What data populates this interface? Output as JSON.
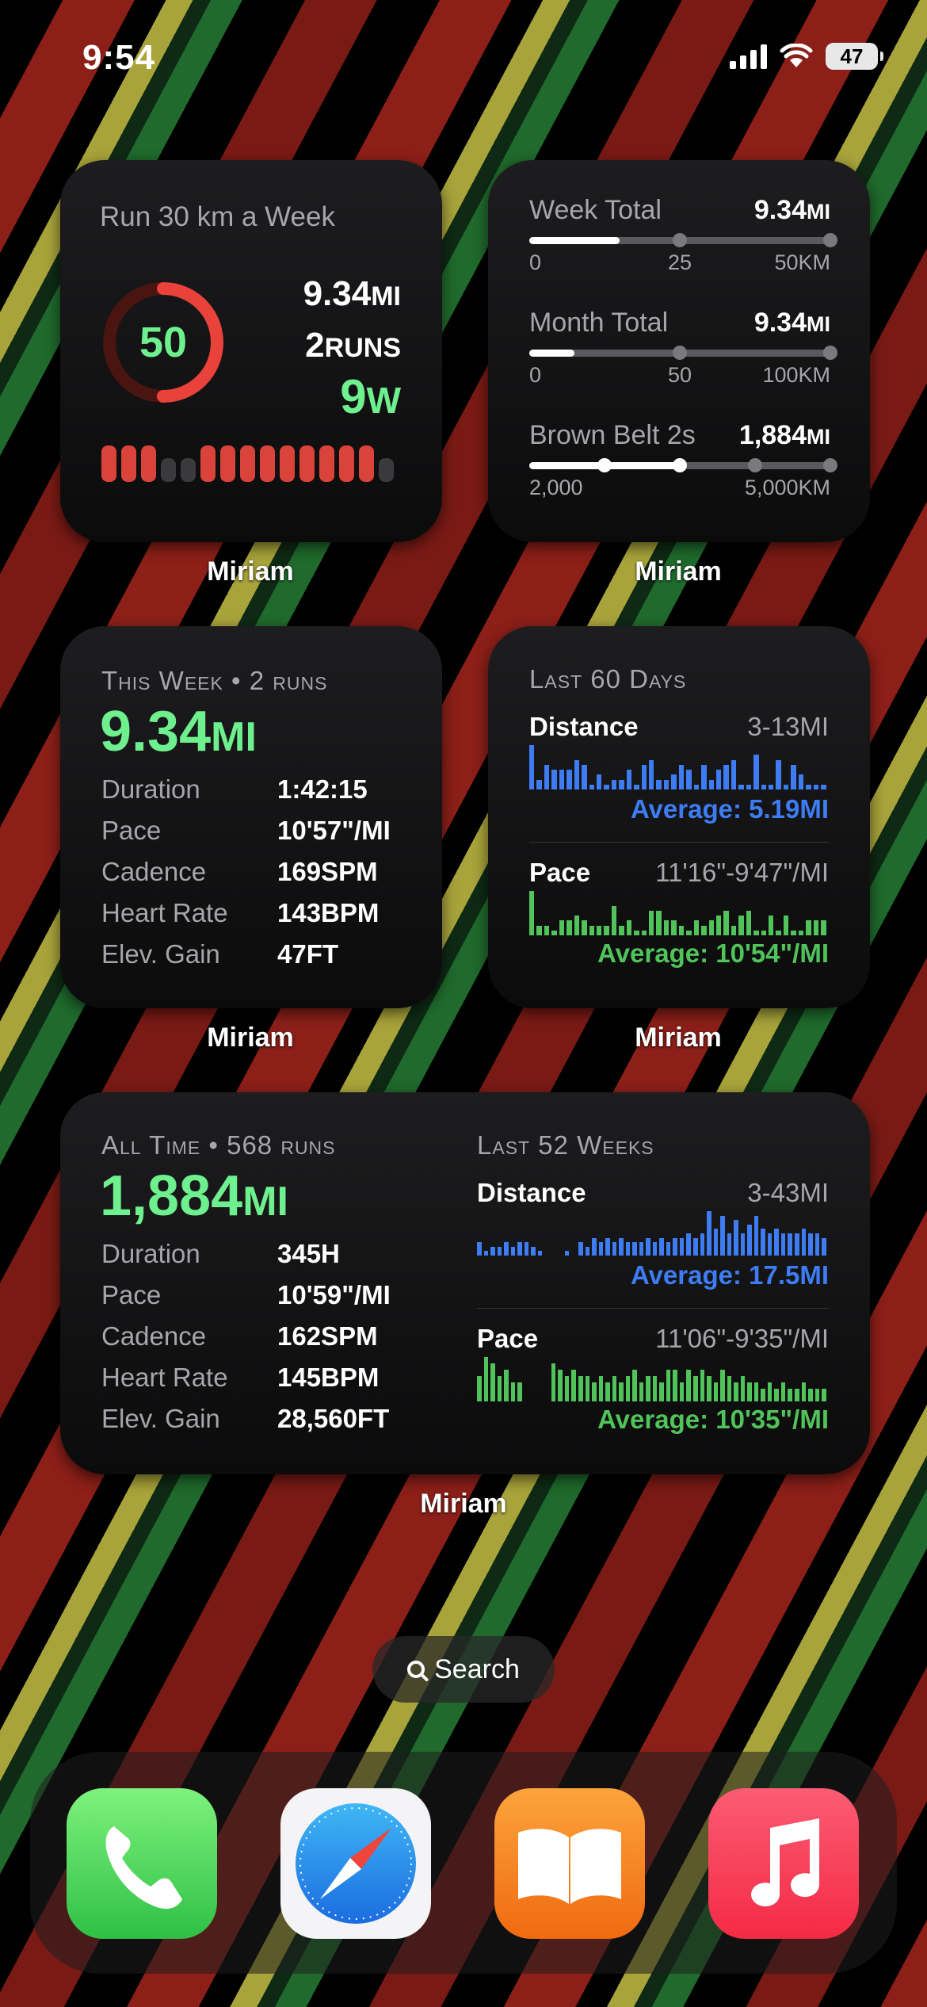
{
  "status_bar": {
    "time": "9:54",
    "battery": "47"
  },
  "widgets": {
    "goal": {
      "title": "Run 30 km a Week",
      "ring_value": "50",
      "ring_progress": 0.5,
      "distance": "9.34",
      "distance_unit": "MI",
      "runs": "2",
      "runs_unit": "RUNS",
      "weeks": "9",
      "weeks_unit": "W",
      "streak_bars": [
        1,
        1,
        1,
        0,
        0,
        1,
        1,
        1,
        1,
        1,
        1,
        1,
        1,
        1,
        0
      ],
      "label": "Miriam"
    },
    "totals": {
      "week": {
        "name": "Week Total",
        "value": "9.34",
        "unit": "MI",
        "ticks": [
          "0",
          "25",
          "50KM"
        ],
        "progress": 0.3,
        "dots": [
          0.5,
          1.0
        ]
      },
      "month": {
        "name": "Month Total",
        "value": "9.34",
        "unit": "MI",
        "ticks": [
          "0",
          "50",
          "100KM"
        ],
        "progress": 0.15,
        "dots": [
          0.5,
          1.0
        ]
      },
      "belt": {
        "name": "Brown Belt 2s",
        "value": "1,884",
        "unit": "MI",
        "ticks": [
          "2,000",
          "5,000KM"
        ],
        "progress": 0.5,
        "dots": [
          0.25,
          0.5,
          0.75,
          1.0
        ]
      },
      "label": "Miriam"
    },
    "this_week": {
      "heading": "This Week • 2 runs",
      "distance": "9.34",
      "distance_unit": "MI",
      "stats": [
        {
          "k": "Duration",
          "v": "1:42:15"
        },
        {
          "k": "Pace",
          "v": "10'57\"/MI"
        },
        {
          "k": "Cadence",
          "v": "169SPM"
        },
        {
          "k": "Heart Rate",
          "v": "143BPM"
        },
        {
          "k": "Elev. Gain",
          "v": "47FT"
        }
      ],
      "label": "Miriam"
    },
    "last60": {
      "heading": "Last 60 Days",
      "distance": {
        "name": "Distance",
        "range": "3-13MI",
        "average": "Average: 5.19MI",
        "bars": [
          9,
          2,
          5,
          4,
          4,
          4,
          6,
          5,
          1,
          3,
          1,
          2,
          2,
          4,
          1,
          5,
          6,
          2,
          2,
          3,
          5,
          4,
          1,
          5,
          2,
          4,
          5,
          6,
          1,
          1,
          7,
          1,
          1,
          6,
          1,
          5,
          3,
          1,
          1,
          1
        ]
      },
      "pace": {
        "name": "Pace",
        "range": "11'16\"-9'47\"/MI",
        "average": "Average: 10'54\"/MI",
        "bars": [
          9,
          2,
          2,
          1,
          3,
          3,
          4,
          3,
          2,
          2,
          2,
          6,
          2,
          3,
          1,
          1,
          5,
          5,
          3,
          3,
          2,
          1,
          3,
          2,
          3,
          4,
          5,
          2,
          4,
          5,
          1,
          1,
          4,
          1,
          4,
          1,
          1,
          3,
          3,
          3
        ]
      },
      "label": "Miriam"
    },
    "all_time": {
      "heading": "All Time • 568 runs",
      "distance": "1,884",
      "distance_unit": "MI",
      "stats": [
        {
          "k": "Duration",
          "v": "345H"
        },
        {
          "k": "Pace",
          "v": "10'59\"/MI"
        },
        {
          "k": "Cadence",
          "v": "162SPM"
        },
        {
          "k": "Heart Rate",
          "v": "145BPM"
        },
        {
          "k": "Elev. Gain",
          "v": "28,560FT"
        }
      ],
      "weeks_heading": "Last 52 Weeks",
      "distance52": {
        "name": "Distance",
        "range": "3-43MI",
        "average": "Average: 17.5MI",
        "bars": [
          3,
          1,
          2,
          2,
          3,
          2,
          3,
          3,
          2,
          1,
          0,
          0,
          0,
          1,
          0,
          3,
          2,
          4,
          3,
          4,
          3,
          4,
          3,
          3,
          3,
          4,
          3,
          4,
          3,
          4,
          4,
          5,
          4,
          5,
          10,
          6,
          9,
          5,
          8,
          5,
          7,
          9,
          6,
          5,
          6,
          5,
          5,
          5,
          6,
          5,
          5,
          4
        ]
      },
      "pace52": {
        "name": "Pace",
        "range": "11'06\"-9'35\"/MI",
        "average": "Average: 10'35\"/MI",
        "bars": [
          4,
          7,
          6,
          4,
          5,
          3,
          3,
          0,
          0,
          0,
          0,
          6,
          5,
          4,
          5,
          4,
          4,
          3,
          4,
          3,
          4,
          3,
          4,
          5,
          3,
          4,
          4,
          3,
          5,
          5,
          3,
          5,
          4,
          5,
          4,
          3,
          5,
          4,
          3,
          4,
          3,
          3,
          2,
          3,
          2,
          3,
          2,
          2,
          3,
          2,
          2,
          2
        ]
      },
      "label": "Miriam"
    }
  },
  "search": {
    "label": "Search"
  },
  "dock": {
    "apps": [
      "phone-app-icon",
      "safari-app-icon",
      "books-app-icon",
      "music-app-icon"
    ]
  },
  "colors": {
    "green": "#6ef08e",
    "blue": "#3d7cf2",
    "pace_green": "#50c35a",
    "ring_red": "#e8423a"
  }
}
